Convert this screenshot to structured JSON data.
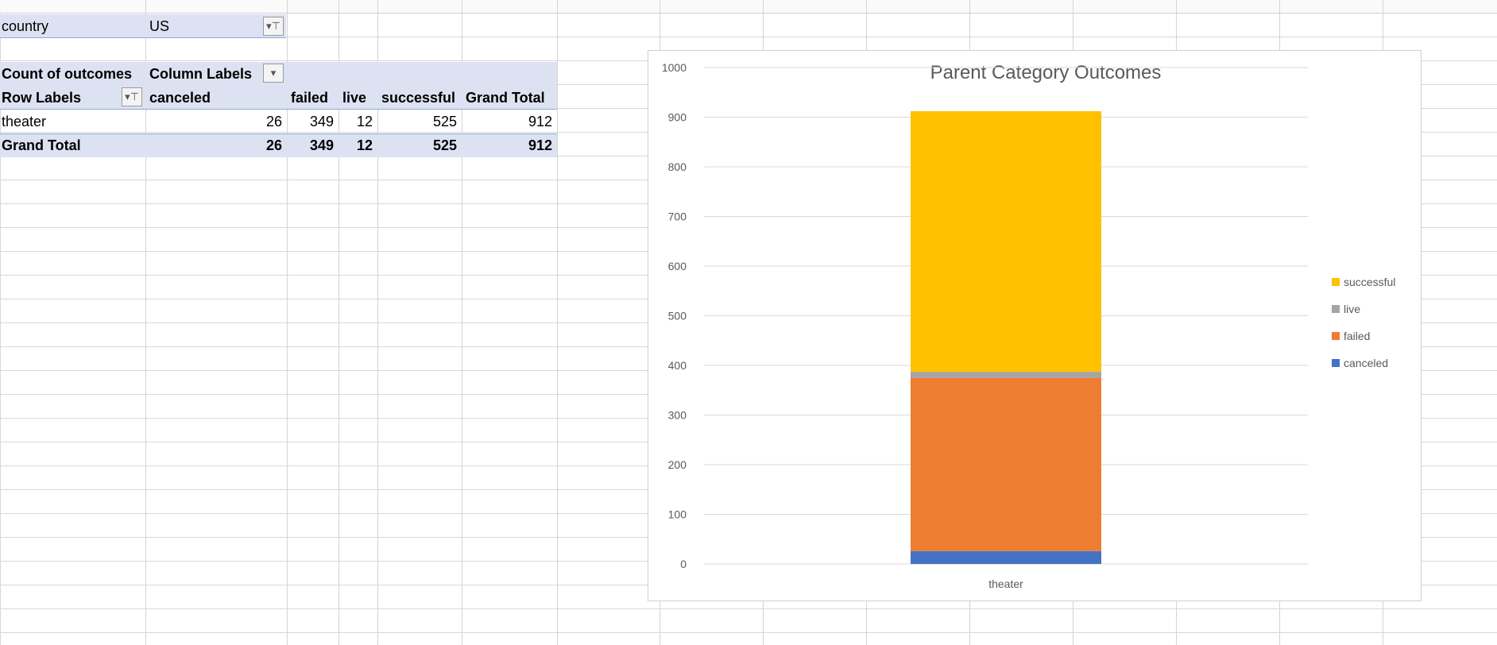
{
  "report_filter": {
    "label": "country",
    "value": "US"
  },
  "pivot": {
    "value_label": "Count of outcomes",
    "column_labels": "Column Labels",
    "row_labels": "Row Labels",
    "columns": [
      "canceled",
      "failed",
      "live",
      "successful",
      "Grand Total"
    ],
    "rows": [
      {
        "label": "theater",
        "values": [
          "26",
          "349",
          "12",
          "525",
          "912"
        ]
      }
    ],
    "grand_total": {
      "label": "Grand Total",
      "values": [
        "26",
        "349",
        "12",
        "525",
        "912"
      ]
    }
  },
  "chart_data": {
    "type": "bar",
    "stacked": true,
    "title": "Parent Category Outcomes",
    "categories": [
      "theater"
    ],
    "series": [
      {
        "name": "canceled",
        "values": [
          26
        ],
        "color": "#4472c4"
      },
      {
        "name": "failed",
        "values": [
          349
        ],
        "color": "#ed7d31"
      },
      {
        "name": "live",
        "values": [
          12
        ],
        "color": "#a5a5a5"
      },
      {
        "name": "successful",
        "values": [
          525
        ],
        "color": "#ffc000"
      }
    ],
    "ylim": [
      0,
      1000
    ],
    "yticks": [
      "0",
      "100",
      "200",
      "300",
      "400",
      "500",
      "600",
      "700",
      "800",
      "900",
      "1000"
    ],
    "grid": true,
    "legend": "right"
  }
}
